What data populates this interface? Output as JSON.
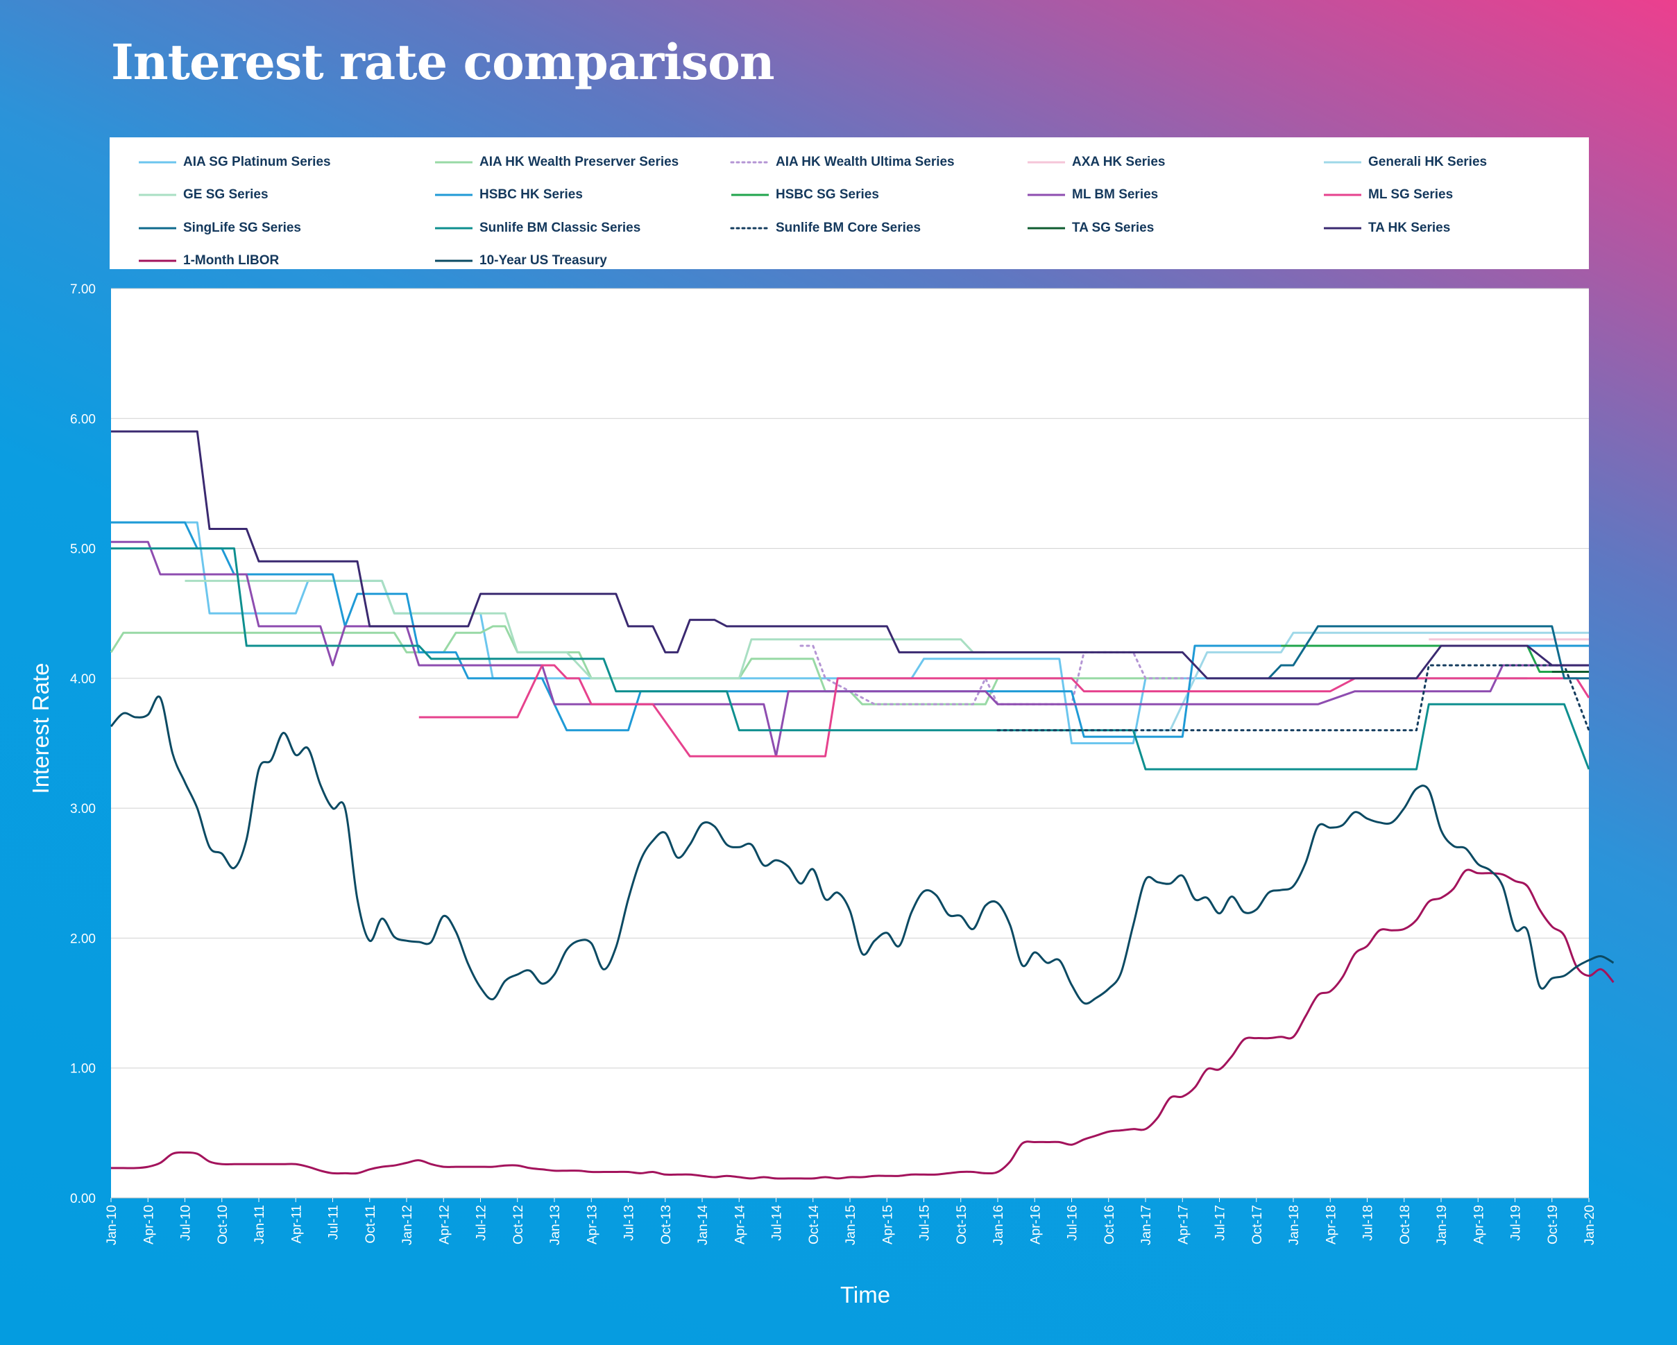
{
  "title": "Interest rate comparison",
  "chart_data": {
    "type": "line",
    "xlabel": "Time",
    "ylabel": "Interest Rate",
    "ylim": [
      0,
      7
    ],
    "yticks": [
      "0.00",
      "1.00",
      "2.00",
      "3.00",
      "4.00",
      "5.00",
      "6.00",
      "7.00"
    ],
    "grid": "horizontal",
    "legend_position": "top",
    "x_start": "Jan-10",
    "x_end": "Jan-20",
    "xtick_labels": [
      "Jan-10",
      "Apr-10",
      "Jul-10",
      "Oct-10",
      "Jan-11",
      "Apr-11",
      "Jul-11",
      "Oct-11",
      "Jan-12",
      "Apr-12",
      "Jul-12",
      "Oct-12",
      "Jan-13",
      "Apr-13",
      "Jul-13",
      "Oct-13",
      "Jan-14",
      "Apr-14",
      "Jul-14",
      "Oct-14",
      "Jan-15",
      "Apr-15",
      "Jul-15",
      "Oct-15",
      "Jan-16",
      "Apr-16",
      "Jul-16",
      "Oct-16",
      "Jan-17",
      "Apr-17",
      "Jul-17",
      "Oct-17",
      "Jan-18",
      "Apr-18",
      "Jul-18",
      "Oct-18",
      "Jan-19",
      "Apr-19",
      "Jul-19",
      "Oct-19",
      "Jan-20"
    ],
    "series": [
      {
        "name": "AIA SG Platinum Series",
        "color": "#6cc6ee",
        "dash": false,
        "points": [
          [
            "Jan-10",
            5.2
          ],
          [
            "Aug-10",
            5.2
          ],
          [
            "Sep-10",
            4.5
          ],
          [
            "Apr-11",
            4.5
          ],
          [
            "May-11",
            4.75
          ],
          [
            "Nov-11",
            4.75
          ],
          [
            "Dec-11",
            4.5
          ],
          [
            "Jul-12",
            4.5
          ],
          [
            "Aug-12",
            4.0
          ],
          [
            "Jun-15",
            4.0
          ],
          [
            "Jul-15",
            4.15
          ],
          [
            "Jun-16",
            4.15
          ],
          [
            "Jul-16",
            3.5
          ],
          [
            "Dec-16",
            3.5
          ],
          [
            "Jan-17",
            4.0
          ],
          [
            "Aug-19",
            4.0
          ]
        ]
      },
      {
        "name": "AIA HK Wealth Preserver Series",
        "color": "#98d9a5",
        "dash": false,
        "points": [
          [
            "Jan-10",
            4.2
          ],
          [
            "Feb-10",
            4.35
          ],
          [
            "Dec-11",
            4.35
          ],
          [
            "Jan-12",
            4.2
          ],
          [
            "Apr-12",
            4.2
          ],
          [
            "May-12",
            4.35
          ],
          [
            "Jul-12",
            4.35
          ],
          [
            "Aug-12",
            4.4
          ],
          [
            "Sep-12",
            4.4
          ],
          [
            "Oct-12",
            4.2
          ],
          [
            "Mar-13",
            4.2
          ],
          [
            "Apr-13",
            4.0
          ],
          [
            "Apr-14",
            4.0
          ],
          [
            "May-14",
            4.15
          ],
          [
            "Oct-14",
            4.15
          ],
          [
            "Nov-14",
            3.9
          ],
          [
            "Jan-15",
            3.9
          ],
          [
            "Feb-15",
            3.8
          ],
          [
            "Dec-15",
            3.8
          ],
          [
            "Jan-16",
            4.0
          ],
          [
            "Apr-17",
            4.0
          ]
        ]
      },
      {
        "name": "AIA HK Wealth Ultima Series",
        "color": "#b495d4",
        "dash": true,
        "points": [
          [
            "Sep-14",
            4.25
          ],
          [
            "Oct-14",
            4.25
          ],
          [
            "Nov-14",
            4.0
          ],
          [
            "Mar-15",
            3.8
          ],
          [
            "Nov-15",
            3.8
          ],
          [
            "Dec-15",
            4.0
          ],
          [
            "Jan-16",
            3.8
          ],
          [
            "Jul-16",
            3.8
          ],
          [
            "Aug-16",
            4.2
          ],
          [
            "Dec-16",
            4.2
          ],
          [
            "Jan-17",
            4.0
          ],
          [
            "Apr-17",
            4.0
          ],
          [
            "May-17",
            4.0
          ]
        ]
      },
      {
        "name": "AXA HK Series",
        "color": "#f5c6d8",
        "dash": false,
        "points": [
          [
            "Dec-18",
            4.3
          ],
          [
            "Jan-20",
            4.3
          ]
        ]
      },
      {
        "name": "Generali HK Series",
        "color": "#9fd8e8",
        "dash": false,
        "points": [
          [
            "Jan-17",
            3.6
          ],
          [
            "Mar-17",
            3.6
          ],
          [
            "May-17",
            4.0
          ],
          [
            "Jun-17",
            4.2
          ],
          [
            "Dec-17",
            4.2
          ],
          [
            "Jan-18",
            4.35
          ],
          [
            "Jan-20",
            4.35
          ]
        ]
      },
      {
        "name": "GE SG Series",
        "color": "#a9dfc3",
        "dash": false,
        "points": [
          [
            "Jul-10",
            4.75
          ],
          [
            "Nov-11",
            4.75
          ],
          [
            "Dec-11",
            4.5
          ],
          [
            "Sep-12",
            4.5
          ],
          [
            "Oct-12",
            4.2
          ],
          [
            "Feb-13",
            4.2
          ],
          [
            "Apr-13",
            4.0
          ],
          [
            "Apr-14",
            4.0
          ],
          [
            "May-14",
            4.3
          ],
          [
            "Oct-15",
            4.3
          ],
          [
            "Nov-15",
            4.2
          ],
          [
            "Dec-15",
            4.2
          ]
        ]
      },
      {
        "name": "HSBC HK Series",
        "color": "#1f9ad6",
        "dash": false,
        "points": [
          [
            "Jan-10",
            5.2
          ],
          [
            "Jul-10",
            5.2
          ],
          [
            "Aug-10",
            5.0
          ],
          [
            "Oct-10",
            5.0
          ],
          [
            "Nov-10",
            4.8
          ],
          [
            "Jul-11",
            4.8
          ],
          [
            "Aug-11",
            4.4
          ],
          [
            "Sep-11",
            4.65
          ],
          [
            "Jan-12",
            4.65
          ],
          [
            "Feb-12",
            4.2
          ],
          [
            "May-12",
            4.2
          ],
          [
            "Jun-12",
            4.0
          ],
          [
            "Dec-12",
            4.0
          ],
          [
            "Feb-13",
            3.6
          ],
          [
            "Jul-13",
            3.6
          ],
          [
            "Aug-13",
            3.9
          ],
          [
            "Jul-16",
            3.9
          ],
          [
            "Aug-16",
            3.55
          ],
          [
            "Mar-17",
            3.55
          ],
          [
            "Apr-17",
            3.55
          ],
          [
            "May-17",
            4.25
          ],
          [
            "Dec-17",
            4.25
          ],
          [
            "Jan-18",
            4.25
          ],
          [
            "Jan-20",
            4.25
          ]
        ]
      },
      {
        "name": "HSBC SG Series",
        "color": "#20a44c",
        "dash": false,
        "points": [
          [
            "Dec-17",
            4.25
          ],
          [
            "Aug-19",
            4.25
          ],
          [
            "Sep-19",
            4.05
          ],
          [
            "Jan-20",
            4.05
          ]
        ]
      },
      {
        "name": "ML BM Series",
        "color": "#8e4db0",
        "dash": false,
        "points": [
          [
            "Jan-10",
            5.05
          ],
          [
            "Apr-10",
            5.05
          ],
          [
            "May-10",
            4.8
          ],
          [
            "Dec-10",
            4.8
          ],
          [
            "Jan-11",
            4.4
          ],
          [
            "Jun-11",
            4.4
          ],
          [
            "Jul-11",
            4.1
          ],
          [
            "Aug-11",
            4.4
          ],
          [
            "Jan-12",
            4.4
          ],
          [
            "Feb-12",
            4.1
          ],
          [
            "Dec-12",
            4.1
          ],
          [
            "Jan-13",
            3.8
          ],
          [
            "Jun-14",
            3.8
          ],
          [
            "Jul-14",
            3.4
          ],
          [
            "Aug-14",
            3.9
          ],
          [
            "Dec-15",
            3.9
          ],
          [
            "Jan-16",
            3.8
          ],
          [
            "Mar-18",
            3.8
          ],
          [
            "Jun-18",
            3.9
          ],
          [
            "May-19",
            3.9
          ],
          [
            "Jun-19",
            4.1
          ],
          [
            "Jan-20",
            4.1
          ]
        ]
      },
      {
        "name": "ML SG Series",
        "color": "#e6428d",
        "dash": false,
        "points": [
          [
            "Feb-12",
            3.7
          ],
          [
            "Oct-12",
            3.7
          ],
          [
            "Dec-12",
            4.1
          ],
          [
            "Jan-13",
            4.1
          ],
          [
            "Feb-13",
            4.0
          ],
          [
            "Mar-13",
            4.0
          ],
          [
            "Apr-13",
            3.8
          ],
          [
            "Sep-13",
            3.8
          ],
          [
            "Dec-13",
            3.4
          ],
          [
            "Jul-14",
            3.4
          ],
          [
            "Nov-14",
            3.4
          ],
          [
            "Dec-14",
            4.0
          ],
          [
            "Jan-15",
            4.0
          ],
          [
            "Jun-16",
            4.0
          ],
          [
            "Jul-16",
            4.0
          ],
          [
            "Aug-16",
            3.9
          ],
          [
            "Nov-17",
            3.9
          ],
          [
            "Apr-18",
            3.9
          ],
          [
            "Jun-18",
            4.0
          ],
          [
            "Dec-19",
            4.0
          ],
          [
            "Jan-20",
            3.85
          ]
        ]
      },
      {
        "name": "SingLife SG Series",
        "color": "#0f6a8c",
        "dash": false,
        "points": [
          [
            "Nov-17",
            4.0
          ],
          [
            "Dec-17",
            4.1
          ],
          [
            "Jan-18",
            4.1
          ],
          [
            "Mar-18",
            4.4
          ],
          [
            "Oct-19",
            4.4
          ],
          [
            "Nov-19",
            4.0
          ],
          [
            "Jan-20",
            4.0
          ]
        ]
      },
      {
        "name": "Sunlife BM Classic Series",
        "color": "#0e8f8f",
        "dash": false,
        "points": [
          [
            "Jan-10",
            5.0
          ],
          [
            "Nov-10",
            5.0
          ],
          [
            "Dec-10",
            4.25
          ],
          [
            "Feb-12",
            4.25
          ],
          [
            "Mar-12",
            4.15
          ],
          [
            "May-13",
            4.15
          ],
          [
            "Jun-13",
            3.9
          ],
          [
            "Mar-14",
            3.9
          ],
          [
            "Apr-14",
            3.6
          ],
          [
            "Jul-16",
            3.6
          ],
          [
            "Dec-16",
            3.6
          ],
          [
            "Jan-17",
            3.3
          ],
          [
            "Nov-18",
            3.3
          ],
          [
            "Dec-18",
            3.8
          ],
          [
            "Nov-19",
            3.8
          ],
          [
            "Jan-20",
            3.3
          ]
        ]
      },
      {
        "name": "Sunlife BM Core Series",
        "color": "#143c5e",
        "dash": true,
        "points": [
          [
            "Jan-16",
            3.6
          ],
          [
            "Nov-18",
            3.6
          ],
          [
            "Dec-18",
            4.1
          ],
          [
            "Nov-19",
            4.1
          ],
          [
            "Jan-20",
            3.6
          ]
        ]
      },
      {
        "name": "TA SG Series",
        "color": "#0f5c30",
        "dash": false,
        "points": [
          [
            "Oct-19",
            4.05
          ],
          [
            "Jan-20",
            4.05
          ]
        ]
      },
      {
        "name": "TA HK Series",
        "color": "#3a2970",
        "dash": false,
        "points": [
          [
            "Jan-10",
            5.9
          ],
          [
            "Aug-10",
            5.9
          ],
          [
            "Sep-10",
            5.15
          ],
          [
            "Dec-10",
            5.15
          ],
          [
            "Jan-11",
            4.9
          ],
          [
            "Sep-11",
            4.9
          ],
          [
            "Oct-11",
            4.4
          ],
          [
            "Jun-12",
            4.4
          ],
          [
            "Jul-12",
            4.65
          ],
          [
            "Jun-13",
            4.65
          ],
          [
            "Jul-13",
            4.4
          ],
          [
            "Sep-13",
            4.4
          ],
          [
            "Oct-13",
            4.2
          ],
          [
            "Nov-13",
            4.2
          ],
          [
            "Dec-13",
            4.45
          ],
          [
            "Feb-14",
            4.45
          ],
          [
            "Mar-14",
            4.4
          ],
          [
            "Apr-15",
            4.4
          ],
          [
            "May-15",
            4.2
          ],
          [
            "Apr-17",
            4.2
          ],
          [
            "Jun-17",
            4.0
          ],
          [
            "Nov-18",
            4.0
          ],
          [
            "Jan-19",
            4.25
          ],
          [
            "Aug-19",
            4.25
          ],
          [
            "Oct-19",
            4.1
          ],
          [
            "Jan-20",
            4.1
          ]
        ]
      },
      {
        "name": "1-Month LIBOR",
        "color": "#a3135c",
        "dash": false,
        "values": [
          0.23,
          0.23,
          0.23,
          0.24,
          0.27,
          0.34,
          0.35,
          0.34,
          0.28,
          0.26,
          0.26,
          0.26,
          0.26,
          0.26,
          0.26,
          0.26,
          0.24,
          0.21,
          0.19,
          0.19,
          0.19,
          0.22,
          0.24,
          0.25,
          0.27,
          0.29,
          0.26,
          0.24,
          0.24,
          0.24,
          0.24,
          0.24,
          0.25,
          0.25,
          0.23,
          0.22,
          0.21,
          0.21,
          0.21,
          0.2,
          0.2,
          0.2,
          0.2,
          0.19,
          0.2,
          0.18,
          0.18,
          0.18,
          0.17,
          0.16,
          0.17,
          0.16,
          0.15,
          0.16,
          0.15,
          0.15,
          0.15,
          0.15,
          0.16,
          0.15,
          0.16,
          0.16,
          0.17,
          0.17,
          0.17,
          0.18,
          0.18,
          0.18,
          0.19,
          0.2,
          0.2,
          0.19,
          0.2,
          0.28,
          0.42,
          0.43,
          0.43,
          0.43,
          0.41,
          0.45,
          0.48,
          0.51,
          0.52,
          0.53,
          0.53,
          0.62,
          0.77,
          0.78,
          0.85,
          0.99,
          0.99,
          1.09,
          1.22,
          1.23,
          1.23,
          1.24,
          1.24,
          1.4,
          1.56,
          1.59,
          1.7,
          1.88,
          1.94,
          2.06,
          2.06,
          2.07,
          2.14,
          2.28,
          2.31,
          2.38,
          2.52,
          2.5,
          2.5,
          2.49,
          2.44,
          2.4,
          2.22,
          2.09,
          2.02,
          1.78,
          1.71,
          1.76,
          1.66
        ]
      },
      {
        "name": "10-Year US Treasury",
        "color": "#0b4a63",
        "dash": false,
        "values": [
          3.63,
          3.73,
          3.7,
          3.72,
          3.85,
          3.42,
          3.2,
          3.0,
          2.7,
          2.65,
          2.54,
          2.76,
          3.3,
          3.37,
          3.58,
          3.41,
          3.46,
          3.18,
          3.0,
          3.0,
          2.3,
          1.98,
          2.15,
          2.01,
          1.98,
          1.97,
          1.97,
          2.17,
          2.05,
          1.8,
          1.62,
          1.53,
          1.67,
          1.72,
          1.75,
          1.65,
          1.72,
          1.91,
          1.98,
          1.96,
          1.76,
          1.93,
          2.3,
          2.6,
          2.75,
          2.81,
          2.62,
          2.72,
          2.88,
          2.86,
          2.72,
          2.7,
          2.72,
          2.56,
          2.6,
          2.55,
          2.42,
          2.53,
          2.3,
          2.35,
          2.21,
          1.88,
          1.98,
          2.04,
          1.94,
          2.2,
          2.36,
          2.33,
          2.18,
          2.17,
          2.07,
          2.25,
          2.27,
          2.1,
          1.79,
          1.89,
          1.81,
          1.83,
          1.64,
          1.5,
          1.54,
          1.61,
          1.73,
          2.1,
          2.45,
          2.43,
          2.42,
          2.48,
          2.3,
          2.31,
          2.19,
          2.32,
          2.2,
          2.22,
          2.35,
          2.37,
          2.4,
          2.58,
          2.86,
          2.85,
          2.87,
          2.97,
          2.92,
          2.89,
          2.89,
          3.0,
          3.15,
          3.14,
          2.83,
          2.71,
          2.69,
          2.57,
          2.52,
          2.4,
          2.07,
          2.06,
          1.63,
          1.69,
          1.71,
          1.78,
          1.83,
          1.86,
          1.81
        ]
      }
    ]
  }
}
